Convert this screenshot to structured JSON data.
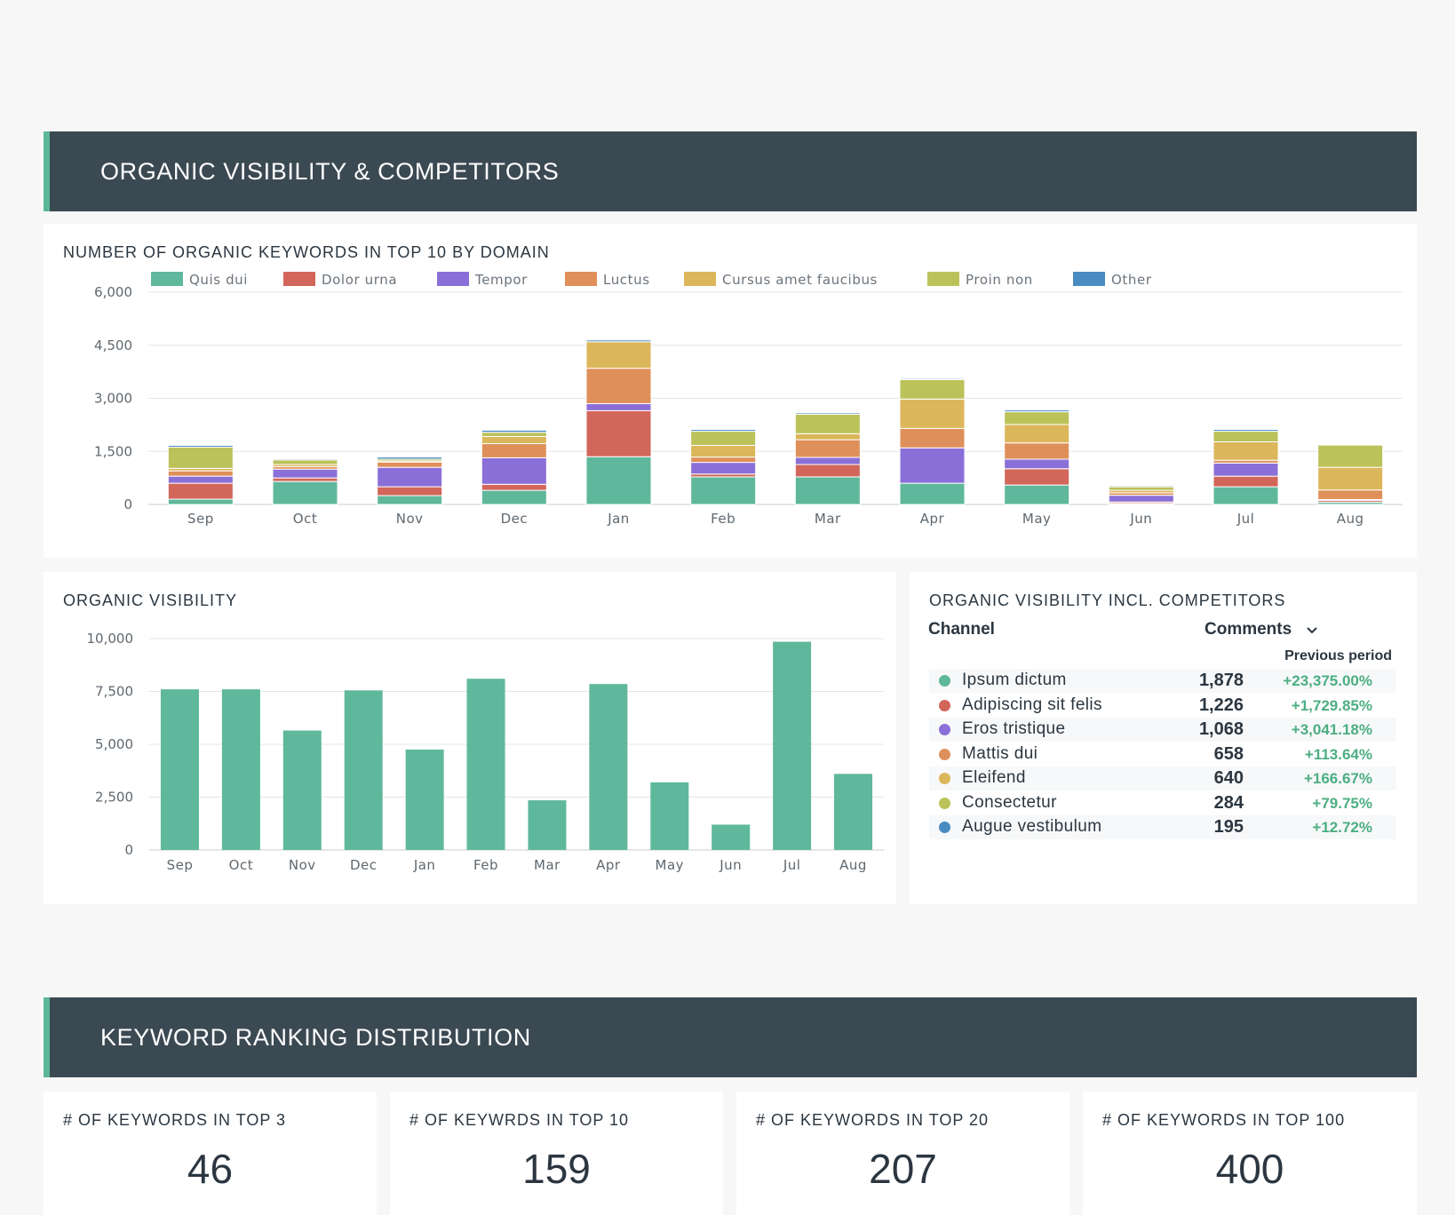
{
  "sections": {
    "visibility_title": "ORGANIC VISIBILITY & COMPETITORS",
    "ranking_title": "KEYWORD RANKING DISTRIBUTION"
  },
  "stacked_panel": {
    "title": "NUMBER OF ORGANIC KEYWORDS IN TOP 10 BY DOMAIN"
  },
  "bar_panel": {
    "title": "ORGANIC VISIBILITY"
  },
  "table": {
    "title": "ORGANIC VISIBILITY INCL. COMPETITORS",
    "col_channel": "Channel",
    "col_comments": "Comments",
    "sub_header": "Previous period",
    "rows": [
      {
        "name": "Ipsum dictum",
        "value": "1,878",
        "change": "+23,375.00%",
        "color": "#5fb89b"
      },
      {
        "name": "Adipiscing sit felis",
        "value": "1,226",
        "change": "+1,729.85%",
        "color": "#d2665a"
      },
      {
        "name": "Eros tristique",
        "value": "1,068",
        "change": "+3,041.18%",
        "color": "#8b6fd8"
      },
      {
        "name": "Mattis dui",
        "value": "658",
        "change": "+113.64%",
        "color": "#df905a"
      },
      {
        "name": "Eleifend",
        "value": "640",
        "change": "+166.67%",
        "color": "#dcb65b"
      },
      {
        "name": "Consectetur",
        "value": "284",
        "change": "+79.75%",
        "color": "#bcc25a"
      },
      {
        "name": "Augue vestibulum",
        "value": "195",
        "change": "+12.72%",
        "color": "#4a8bc2"
      }
    ]
  },
  "kpis": [
    {
      "title": "# OF KEYWORDS IN TOP 3",
      "value": "46"
    },
    {
      "title": "# OF KEYWRDS IN TOP 10",
      "value": "159"
    },
    {
      "title": "# OF KEYWORDS IN TOP 20",
      "value": "207"
    },
    {
      "title": "# OF KEYWORDS IN TOP 100",
      "value": "400"
    }
  ],
  "chart_data": [
    {
      "type": "bar",
      "stacked": true,
      "title": "NUMBER OF ORGANIC KEYWORDS IN TOP 10 BY DOMAIN",
      "categories": [
        "Sep",
        "Oct",
        "Nov",
        "Dec",
        "Jan",
        "Feb",
        "Mar",
        "Apr",
        "May",
        "Jun",
        "Jul",
        "Aug"
      ],
      "yticks": [
        "0",
        "1,500",
        "3,000",
        "4,500",
        "6,000"
      ],
      "ylim": [
        0,
        6000
      ],
      "legend_position": "top",
      "grid": true,
      "series": [
        {
          "name": "Quis dui",
          "color": "#5fb89b",
          "values": [
            150,
            650,
            250,
            400,
            1350,
            780,
            780,
            600,
            550,
            30,
            500,
            60
          ]
        },
        {
          "name": "Dolor urna",
          "color": "#d2665a",
          "values": [
            450,
            100,
            250,
            170,
            1300,
            80,
            350,
            0,
            460,
            40,
            300,
            50
          ]
        },
        {
          "name": "Tempor",
          "color": "#8b6fd8",
          "values": [
            200,
            250,
            550,
            750,
            200,
            330,
            200,
            1000,
            270,
            190,
            370,
            30
          ]
        },
        {
          "name": "Luctus",
          "color": "#df905a",
          "values": [
            150,
            70,
            150,
            400,
            1000,
            150,
            500,
            550,
            460,
            70,
            80,
            270
          ]
        },
        {
          "name": "Cursus amet faucibus",
          "color": "#dcb65b",
          "values": [
            70,
            60,
            30,
            200,
            750,
            330,
            170,
            830,
            520,
            70,
            520,
            640
          ]
        },
        {
          "name": "Proin non",
          "color": "#bcc25a",
          "values": [
            600,
            130,
            50,
            120,
            0,
            400,
            550,
            550,
            360,
            100,
            300,
            630
          ]
        },
        {
          "name": "Other",
          "color": "#4a8bc2",
          "values": [
            50,
            30,
            60,
            60,
            50,
            50,
            40,
            30,
            50,
            30,
            50,
            10
          ]
        }
      ]
    },
    {
      "type": "bar",
      "title": "ORGANIC VISIBILITY",
      "categories": [
        "Sep",
        "Oct",
        "Nov",
        "Dec",
        "Jan",
        "Feb",
        "Mar",
        "Apr",
        "May",
        "Jun",
        "Jul",
        "Aug"
      ],
      "yticks": [
        "0",
        "2,500",
        "5,000",
        "7,500",
        "10,000"
      ],
      "ylim": [
        0,
        10000
      ],
      "grid": true,
      "color": "#5fb89b",
      "values": [
        7600,
        7600,
        5650,
        7550,
        4750,
        8100,
        2350,
        7850,
        3200,
        1200,
        9850,
        3600
      ]
    }
  ]
}
